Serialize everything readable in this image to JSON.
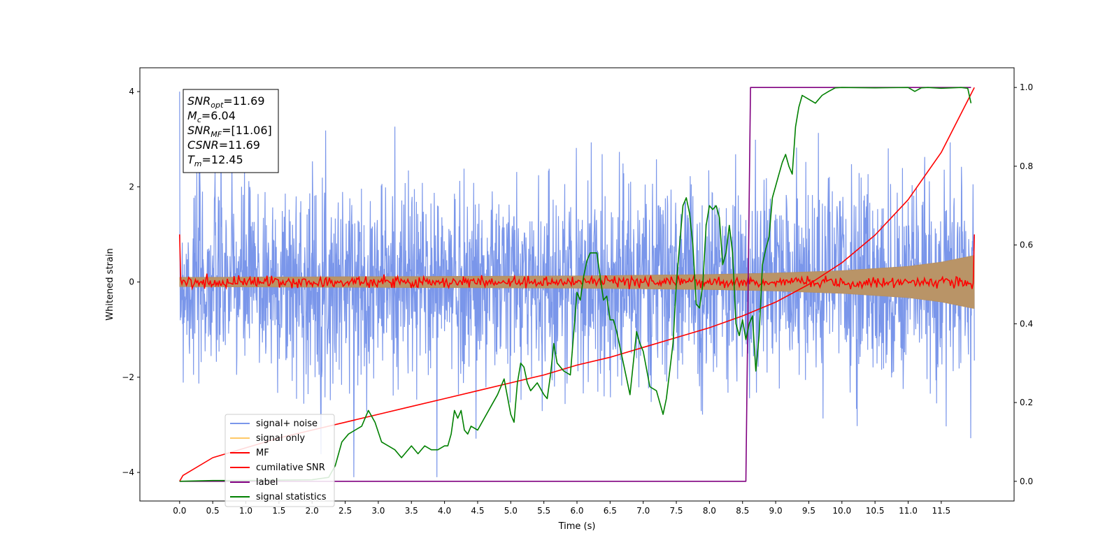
{
  "chart_data": {
    "type": "line",
    "xlabel": "Time (s)",
    "ylabel": "Whitened strain",
    "xlim": [
      -0.6,
      12.6
    ],
    "ylim": [
      -4.6,
      4.5
    ],
    "y2lim": [
      -0.05,
      1.05
    ],
    "x_ticks": [
      0.0,
      0.5,
      1.0,
      1.5,
      2.0,
      2.5,
      3.0,
      3.5,
      4.0,
      4.5,
      5.0,
      5.5,
      6.0,
      6.5,
      7.0,
      7.5,
      8.0,
      8.5,
      9.0,
      9.5,
      10.0,
      10.5,
      11.0,
      11.5
    ],
    "x_tick_labels": [
      "0.0",
      "0.5",
      "1.0",
      "1.5",
      "2.0",
      "2.5",
      "3.0",
      "3.5",
      "4.0",
      "4.5",
      "5.0",
      "5.5",
      "6.0",
      "6.5",
      "7.0",
      "7.5",
      "8.0",
      "8.5",
      "9.0",
      "9.5",
      "10.0",
      "10.5",
      "11.0",
      "11.5"
    ],
    "y_ticks": [
      4,
      2,
      0,
      -2,
      -4
    ],
    "y_tick_labels": [
      "4",
      "2",
      "0",
      "−2",
      "−4"
    ],
    "y2_ticks": [
      1.0,
      0.8,
      0.6,
      0.4,
      0.2,
      0.0
    ],
    "y2_tick_labels": [
      "1.0",
      "0.8",
      "0.6",
      "0.4",
      "0.2",
      "0.0"
    ],
    "grid": false,
    "legend_placement": "lower-left",
    "annotation": {
      "placement": "upper-left",
      "lines": [
        {
          "sym": "SNR",
          "sub": "opt",
          "val": "=11.69"
        },
        {
          "sym": "M",
          "sub": "c",
          "val": "=6.04"
        },
        {
          "sym": "SNR",
          "sub": "MF",
          "val": "=[11.06]"
        },
        {
          "sym": "CSNR",
          "sub": "",
          "val": "=11.69"
        },
        {
          "sym": "T",
          "sub": "m",
          "val": "=12.45"
        }
      ]
    },
    "series": [
      {
        "name": "signal+ noise",
        "axis": "left",
        "color": "#4169e1",
        "opacity": 0.7,
        "style": "noise-band",
        "x_range": [
          0.0,
          12.0
        ],
        "typical_range": [
          -1.8,
          1.8
        ],
        "extreme_range": [
          -4.1,
          4.0
        ]
      },
      {
        "name": "signal only",
        "axis": "left",
        "color": "#ffa500",
        "opacity": 0.5,
        "style": "chirp-envelope",
        "x": [
          0.0,
          2.0,
          4.0,
          6.0,
          8.0,
          9.0,
          10.0,
          11.0,
          11.5,
          12.0
        ],
        "amplitude": [
          0.1,
          0.11,
          0.12,
          0.13,
          0.16,
          0.19,
          0.24,
          0.33,
          0.42,
          0.56
        ]
      },
      {
        "name": "MF",
        "axis": "left",
        "color": "#ff0000",
        "style": "noisy-flat",
        "x_range": [
          0.0,
          12.0
        ],
        "start_value": 1.0,
        "end_value": 1.0,
        "noise_range": [
          -0.15,
          0.25
        ]
      },
      {
        "name": "cumilative SNR",
        "axis": "right",
        "color": "#ff0000",
        "x": [
          0.0,
          0.05,
          0.5,
          1.0,
          1.5,
          2.0,
          2.5,
          3.0,
          3.5,
          4.0,
          4.5,
          5.0,
          5.5,
          6.0,
          6.5,
          7.0,
          7.5,
          8.0,
          8.5,
          9.0,
          9.5,
          10.0,
          10.5,
          11.0,
          11.5,
          12.0
        ],
        "y": [
          0.0,
          0.015,
          0.06,
          0.085,
          0.11,
          0.13,
          0.15,
          0.17,
          0.19,
          0.21,
          0.23,
          0.25,
          0.27,
          0.295,
          0.315,
          0.34,
          0.365,
          0.39,
          0.42,
          0.455,
          0.5,
          0.555,
          0.625,
          0.715,
          0.835,
          1.0
        ]
      },
      {
        "name": "label",
        "axis": "right",
        "color": "#800080",
        "x": [
          0.0,
          8.55,
          8.62,
          11.95
        ],
        "y": [
          0.0,
          0.0,
          1.0,
          1.0
        ]
      },
      {
        "name": "signal statistics",
        "axis": "right",
        "color": "#008000",
        "x": [
          0.0,
          0.5,
          1.0,
          1.5,
          2.0,
          2.25,
          2.35,
          2.45,
          2.55,
          2.65,
          2.75,
          2.85,
          2.95,
          3.05,
          3.15,
          3.25,
          3.35,
          3.5,
          3.6,
          3.7,
          3.8,
          3.9,
          4.0,
          4.05,
          4.1,
          4.15,
          4.2,
          4.25,
          4.3,
          4.35,
          4.4,
          4.5,
          4.6,
          4.7,
          4.8,
          4.9,
          5.0,
          5.05,
          5.1,
          5.15,
          5.2,
          5.25,
          5.3,
          5.4,
          5.5,
          5.55,
          5.6,
          5.65,
          5.7,
          5.8,
          5.9,
          6.0,
          6.05,
          6.1,
          6.15,
          6.2,
          6.3,
          6.35,
          6.4,
          6.45,
          6.5,
          6.55,
          6.6,
          6.7,
          6.8,
          6.9,
          6.95,
          7.0,
          7.1,
          7.2,
          7.3,
          7.35,
          7.4,
          7.45,
          7.5,
          7.6,
          7.65,
          7.7,
          7.75,
          7.8,
          7.85,
          7.9,
          7.95,
          8.0,
          8.05,
          8.1,
          8.15,
          8.2,
          8.25,
          8.3,
          8.35,
          8.4,
          8.45,
          8.5,
          8.55,
          8.6,
          8.65,
          8.7,
          8.75,
          8.8,
          8.85,
          8.9,
          8.95,
          9.0,
          9.05,
          9.1,
          9.15,
          9.2,
          9.25,
          9.3,
          9.35,
          9.4,
          9.5,
          9.6,
          9.7,
          9.8,
          9.9,
          10.0,
          10.5,
          11.0,
          11.1,
          11.2,
          11.3,
          11.5,
          11.8,
          11.9,
          11.95
        ],
        "y": [
          0.0,
          0.002,
          0.002,
          0.003,
          0.004,
          0.01,
          0.04,
          0.1,
          0.12,
          0.13,
          0.14,
          0.18,
          0.15,
          0.1,
          0.09,
          0.08,
          0.06,
          0.09,
          0.07,
          0.09,
          0.08,
          0.08,
          0.09,
          0.09,
          0.12,
          0.18,
          0.16,
          0.18,
          0.13,
          0.12,
          0.14,
          0.13,
          0.16,
          0.19,
          0.22,
          0.26,
          0.17,
          0.15,
          0.25,
          0.3,
          0.29,
          0.25,
          0.23,
          0.25,
          0.22,
          0.21,
          0.27,
          0.35,
          0.3,
          0.28,
          0.27,
          0.48,
          0.46,
          0.52,
          0.56,
          0.58,
          0.58,
          0.52,
          0.46,
          0.47,
          0.41,
          0.41,
          0.38,
          0.3,
          0.22,
          0.38,
          0.35,
          0.33,
          0.24,
          0.23,
          0.17,
          0.21,
          0.28,
          0.35,
          0.5,
          0.7,
          0.72,
          0.68,
          0.6,
          0.45,
          0.44,
          0.5,
          0.65,
          0.7,
          0.69,
          0.7,
          0.67,
          0.55,
          0.58,
          0.65,
          0.58,
          0.4,
          0.37,
          0.41,
          0.36,
          0.4,
          0.42,
          0.28,
          0.37,
          0.55,
          0.59,
          0.62,
          0.72,
          0.75,
          0.78,
          0.81,
          0.83,
          0.8,
          0.78,
          0.9,
          0.95,
          0.98,
          0.97,
          0.96,
          0.98,
          0.99,
          0.999,
          1.0,
          0.999,
          1.0,
          0.99,
          0.999,
          1.0,
          0.998,
          1.0,
          0.998,
          0.96
        ]
      }
    ]
  }
}
